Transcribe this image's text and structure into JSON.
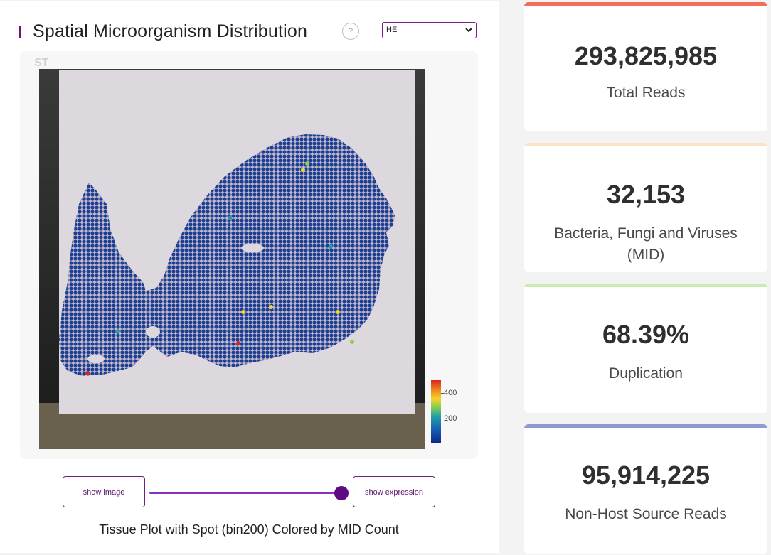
{
  "header": {
    "title": "Spatial Microorganism Distribution",
    "help_symbol": "?",
    "select_value": "HE"
  },
  "plot": {
    "st_label": "ST",
    "colorbar": {
      "tick_high": "400",
      "tick_low": "200"
    }
  },
  "controls": {
    "show_image_label": "show image",
    "show_expression_label": "show expression",
    "slider_value": 1
  },
  "caption": "Tissue Plot with Spot (bin200) Colored by MID Count",
  "stats": [
    {
      "value": "293,825,985",
      "label": "Total Reads",
      "color": "#f26b5b"
    },
    {
      "value": "32,153",
      "label": "Bacteria, Fungi and Viruses (MID)",
      "color": "#fbe3c8"
    },
    {
      "value": "68.39%",
      "label": "Duplication",
      "color": "#c9ecb6"
    },
    {
      "value": "95,914,225",
      "label": "Non-Host Source Reads",
      "color": "#8f9ad0"
    }
  ]
}
